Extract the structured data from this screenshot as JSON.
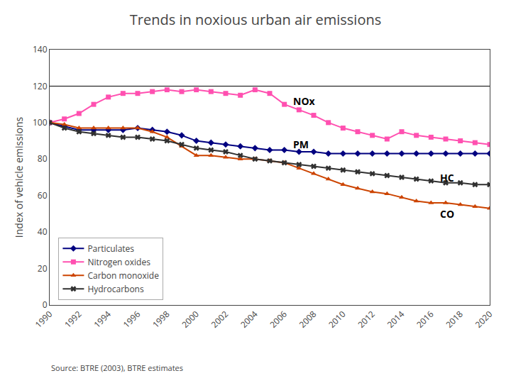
{
  "chart_data": {
    "type": "line",
    "title": "Trends in noxious urban air emissions",
    "ylabel": "Index of vehicle emissions",
    "source": "Source: BTRE (2003), BTRE estimates",
    "x": [
      1990,
      1991,
      1992,
      1993,
      1994,
      1995,
      1996,
      1997,
      1998,
      1999,
      2000,
      2001,
      2002,
      2003,
      2004,
      2005,
      2006,
      2007,
      2008,
      2009,
      2010,
      2011,
      2012,
      2013,
      2014,
      2015,
      2016,
      2017,
      2018,
      2019,
      2020
    ],
    "series": [
      {
        "name": "Particulates",
        "color": "#000080",
        "marker": "diamond",
        "values": [
          100,
          98,
          96,
          96,
          96,
          96,
          97,
          96,
          95,
          93,
          90,
          89,
          88,
          87,
          86,
          85,
          85,
          84,
          84,
          83,
          83,
          83,
          83,
          83,
          83,
          83,
          83,
          83,
          83,
          83,
          83
        ]
      },
      {
        "name": "Nitrogen oxides",
        "color": "#ff50b0",
        "marker": "square",
        "values": [
          100,
          102,
          105,
          110,
          114,
          116,
          116,
          117,
          118,
          117,
          118,
          117,
          116,
          115,
          118,
          116,
          110,
          107,
          104,
          100,
          97,
          95,
          93,
          91,
          95,
          93,
          92,
          91,
          90,
          89,
          88
        ]
      },
      {
        "name": "Carbon monoxide",
        "color": "#cc4400",
        "marker": "triangle-up",
        "values": [
          100,
          99,
          97,
          97,
          97,
          97,
          97,
          95,
          92,
          87,
          82,
          82,
          81,
          80,
          80,
          79,
          78,
          75,
          72,
          69,
          66,
          64,
          62,
          61,
          59,
          57,
          56,
          56,
          55,
          54,
          53
        ]
      },
      {
        "name": "Hydrocarbons",
        "color": "#303030",
        "marker": "x",
        "values": [
          100,
          97,
          95,
          94,
          93,
          92,
          92,
          91,
          90,
          88,
          86,
          85,
          84,
          82,
          80,
          79,
          78,
          77,
          76,
          75,
          74,
          73,
          72,
          71,
          70,
          69,
          68,
          67,
          67,
          66,
          66
        ]
      }
    ],
    "annotations": [
      {
        "text": "NOx",
        "x": 2006.5,
        "y": 112
      },
      {
        "text": "PM",
        "x": 2006.5,
        "y": 88
      },
      {
        "text": "HC",
        "x": 2016.5,
        "y": 70
      },
      {
        "text": "CO",
        "x": 2016.5,
        "y": 50
      }
    ],
    "hlines": [
      120
    ],
    "xlim": [
      1990,
      2020
    ],
    "xticks": [
      1990,
      1992,
      1994,
      1996,
      1998,
      2000,
      2002,
      2004,
      2006,
      2008,
      2010,
      2012,
      2014,
      2016,
      2018,
      2020
    ],
    "ylim": [
      0,
      140
    ],
    "yticks": [
      0,
      20,
      40,
      60,
      80,
      100,
      120,
      140
    ],
    "grid": false,
    "legend": "lower left"
  }
}
